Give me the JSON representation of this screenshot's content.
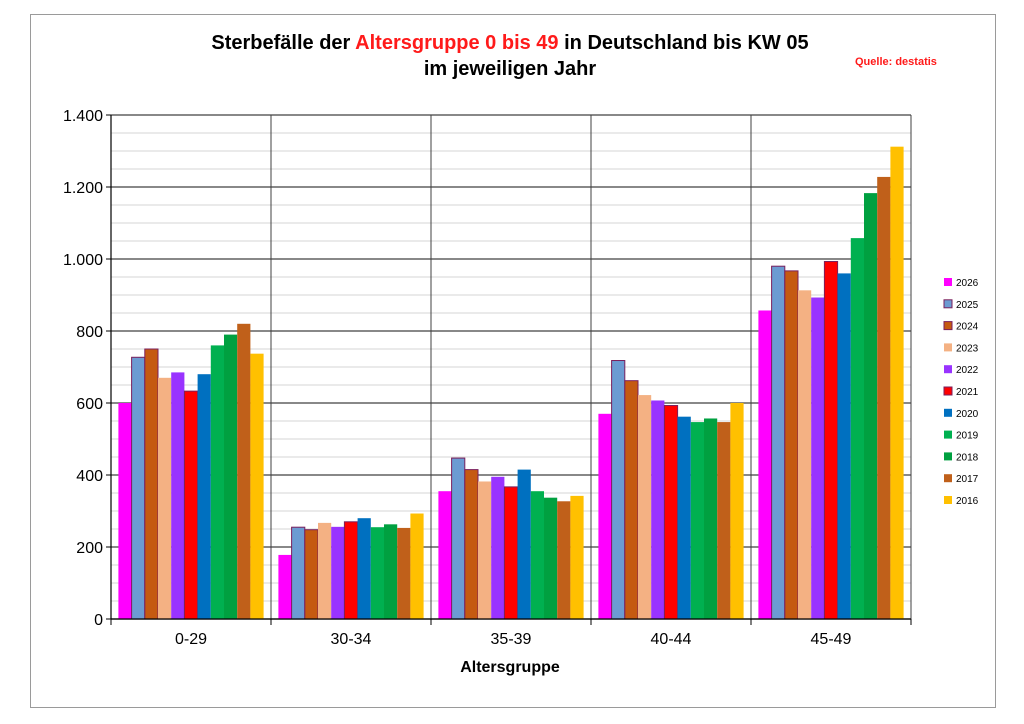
{
  "title": {
    "part1": "Sterbefälle der ",
    "highlight": "Altersgruppe 0 bis 49",
    "part2": " in Deutschland bis KW 05",
    "line2": "im jeweiligen Jahr"
  },
  "source": "Quelle: destatis",
  "chart_data": {
    "type": "bar",
    "title": "Sterbefälle der Altersgruppe 0 bis 49 in Deutschland bis KW 05 im jeweiligen Jahr",
    "xlabel": "Altersgruppe",
    "ylabel": "",
    "ylim": [
      0,
      1400
    ],
    "yticks": [
      0,
      200,
      400,
      600,
      800,
      1000,
      1200,
      1400
    ],
    "ytick_labels": [
      "0",
      "200",
      "400",
      "600",
      "800",
      "1.000",
      "1.200",
      "1.400"
    ],
    "grid": true,
    "legend_position": "right",
    "categories": [
      "0-29",
      "30-34",
      "35-39",
      "40-44",
      "45-49"
    ],
    "series": [
      {
        "name": "2026",
        "color": "#ff00ff",
        "values": [
          600,
          178,
          355,
          570,
          857
        ]
      },
      {
        "name": "2025",
        "color": "#6c9bd2",
        "values": [
          727,
          255,
          447,
          718,
          980
        ]
      },
      {
        "name": "2024",
        "color": "#c55a11",
        "values": [
          750,
          248,
          415,
          662,
          967
        ]
      },
      {
        "name": "2023",
        "color": "#f4b183",
        "values": [
          670,
          267,
          382,
          622,
          913
        ]
      },
      {
        "name": "2022",
        "color": "#9933ff",
        "values": [
          685,
          256,
          395,
          607,
          893
        ]
      },
      {
        "name": "2021",
        "color": "#ff0000",
        "values": [
          633,
          270,
          367,
          593,
          993
        ]
      },
      {
        "name": "2020",
        "color": "#0070c0",
        "values": [
          680,
          280,
          415,
          562,
          960
        ]
      },
      {
        "name": "2019",
        "color": "#00b050",
        "values": [
          760,
          255,
          355,
          547,
          1058
        ]
      },
      {
        "name": "2018",
        "color": "#00a040",
        "values": [
          790,
          263,
          337,
          557,
          1183
        ]
      },
      {
        "name": "2017",
        "color": "#c0601a",
        "values": [
          820,
          253,
          327,
          547,
          1228
        ]
      },
      {
        "name": "2016",
        "color": "#ffc000",
        "values": [
          737,
          293,
          342,
          600,
          1312
        ]
      }
    ]
  }
}
